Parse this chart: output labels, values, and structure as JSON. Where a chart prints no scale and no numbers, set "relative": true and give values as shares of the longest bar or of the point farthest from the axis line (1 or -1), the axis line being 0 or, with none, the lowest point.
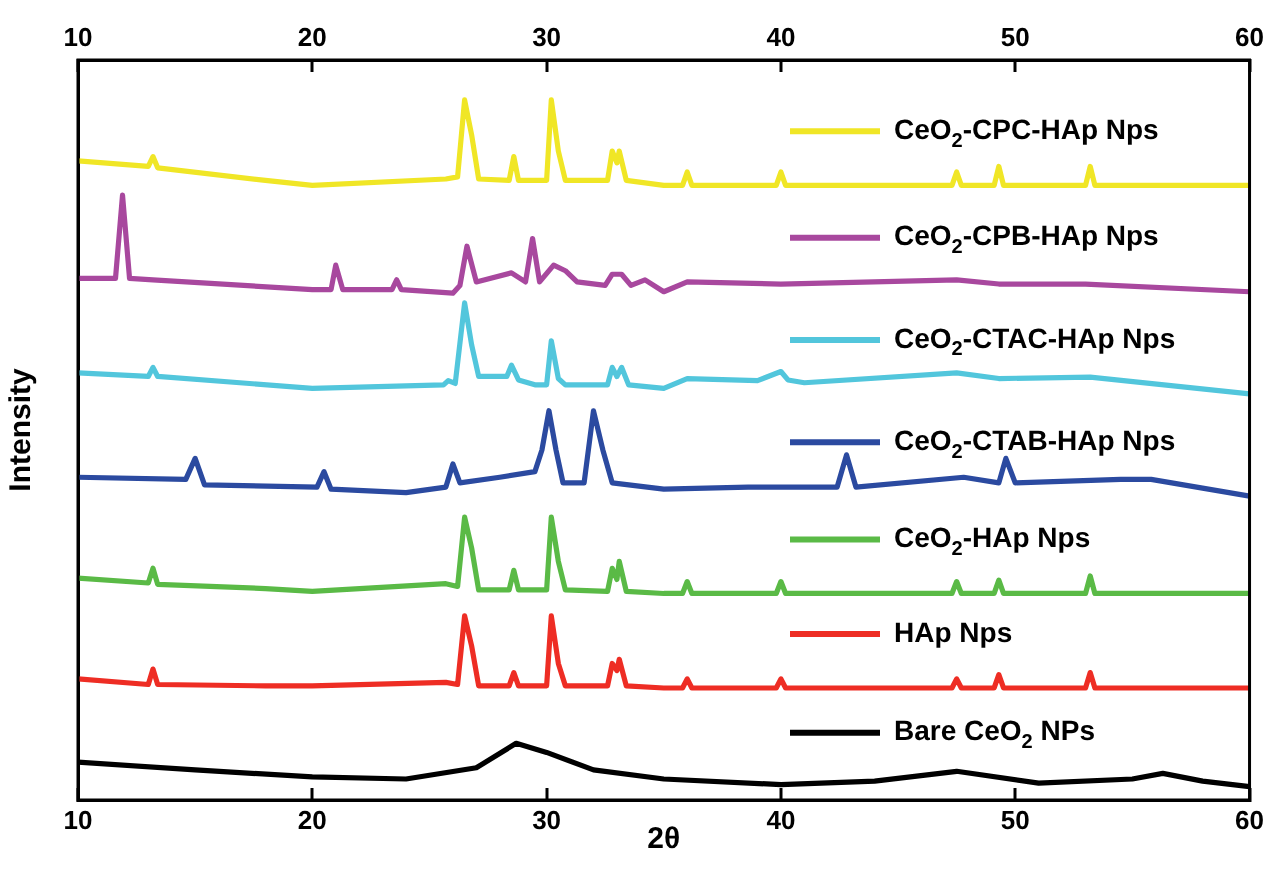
{
  "chart_data": {
    "type": "line",
    "xlabel": "2θ",
    "ylabel": "Intensity",
    "relative": true,
    "xlim": [
      10,
      60
    ],
    "xticks": [
      10,
      20,
      30,
      40,
      50,
      60
    ],
    "x2lim": [
      10,
      60
    ],
    "x2ticks": [
      10,
      20,
      30,
      40,
      50,
      60
    ],
    "legend": "top right",
    "grid": false,
    "marker": "none",
    "line_style": "solid",
    "series": [
      {
        "name": "CeO$_{2}$-CPC-HAp Nps",
        "color": "#f0e626",
        "x": [
          10,
          13,
          13.2,
          13.4,
          18,
          20,
          25.7,
          26.2,
          26.5,
          26.8,
          27.1,
          28.4,
          28.6,
          28.8,
          30,
          30.2,
          30.5,
          30.8,
          32.6,
          32.8,
          33,
          33.1,
          33.4,
          35,
          35.8,
          36,
          36.2,
          39.8,
          40,
          40.2,
          47.3,
          47.5,
          47.7,
          49.1,
          49.3,
          49.5,
          53,
          53.2,
          53.4,
          60
        ],
        "values": [
          0.913,
          0.905,
          0.919,
          0.903,
          0.885,
          0.878,
          0.887,
          0.89,
          1.0,
          0.95,
          0.887,
          0.885,
          0.919,
          0.885,
          0.885,
          1.0,
          0.927,
          0.885,
          0.885,
          0.927,
          0.91,
          0.927,
          0.885,
          0.878,
          0.878,
          0.897,
          0.878,
          0.878,
          0.897,
          0.878,
          0.878,
          0.897,
          0.878,
          0.878,
          0.905,
          0.878,
          0.878,
          0.905,
          0.878,
          0.878
        ]
      },
      {
        "name": "CeO$_{2}$-CPB-HAp Nps",
        "color": "#a8489e",
        "x": [
          10,
          11.6,
          11.9,
          12.2,
          13.2,
          20,
          20.8,
          21,
          21.3,
          23.4,
          23.6,
          23.8,
          26,
          26.3,
          26.6,
          27,
          28.5,
          29.1,
          29.4,
          29.7,
          30.3,
          30.8,
          31.3,
          32.5,
          32.8,
          33.2,
          33.6,
          34.2,
          35,
          36,
          40,
          47.5,
          49.3,
          53,
          60
        ],
        "values": [
          0.745,
          0.745,
          0.864,
          0.745,
          0.743,
          0.729,
          0.729,
          0.764,
          0.729,
          0.729,
          0.743,
          0.729,
          0.724,
          0.735,
          0.791,
          0.74,
          0.753,
          0.74,
          0.802,
          0.74,
          0.764,
          0.756,
          0.74,
          0.735,
          0.751,
          0.751,
          0.735,
          0.743,
          0.726,
          0.74,
          0.737,
          0.743,
          0.737,
          0.737,
          0.726
        ]
      },
      {
        "name": "CeO$_{2}$-CTAC-HAp Nps",
        "color": "#52c6dc",
        "x": [
          10,
          13,
          13.2,
          13.4,
          20,
          25.6,
          25.8,
          26.1,
          26.5,
          26.8,
          27.1,
          28.3,
          28.5,
          28.8,
          29.5,
          30,
          30.2,
          30.5,
          30.8,
          32.6,
          32.8,
          33,
          33.2,
          33.5,
          35,
          36,
          39,
          40,
          40.3,
          41,
          47.5,
          49.3,
          53.2,
          60
        ],
        "values": [
          0.61,
          0.605,
          0.618,
          0.605,
          0.588,
          0.593,
          0.599,
          0.595,
          0.71,
          0.65,
          0.605,
          0.605,
          0.621,
          0.6,
          0.593,
          0.593,
          0.656,
          0.602,
          0.593,
          0.593,
          0.618,
          0.605,
          0.618,
          0.593,
          0.588,
          0.602,
          0.599,
          0.612,
          0.6,
          0.596,
          0.61,
          0.602,
          0.604,
          0.58
        ]
      },
      {
        "name": "CeO$_{2}$-CTAB-HAp Nps",
        "color": "#2b4aa0",
        "x": [
          10,
          14.6,
          15,
          15.4,
          20.2,
          20.5,
          20.8,
          24,
          25.7,
          26,
          26.3,
          28,
          29.5,
          29.8,
          30.1,
          30.4,
          30.7,
          31.6,
          32,
          32.4,
          32.8,
          35,
          38.6,
          42.4,
          42.8,
          43.2,
          47.8,
          49.3,
          49.6,
          50,
          54.5,
          55.8,
          60
        ],
        "values": [
          0.461,
          0.458,
          0.488,
          0.45,
          0.447,
          0.469,
          0.444,
          0.439,
          0.447,
          0.48,
          0.453,
          0.461,
          0.469,
          0.5,
          0.556,
          0.5,
          0.453,
          0.453,
          0.556,
          0.5,
          0.453,
          0.444,
          0.447,
          0.447,
          0.493,
          0.447,
          0.461,
          0.453,
          0.488,
          0.453,
          0.458,
          0.458,
          0.434
        ]
      },
      {
        "name": "CeO$_{2}$-HAp Nps",
        "color": "#5aba46",
        "x": [
          10,
          13,
          13.2,
          13.4,
          18,
          20,
          25.7,
          26.2,
          26.5,
          26.8,
          27.1,
          28.4,
          28.6,
          28.8,
          30,
          30.2,
          30.5,
          30.8,
          32.6,
          32.8,
          33,
          33.1,
          33.4,
          35,
          35.8,
          36,
          36.2,
          39.8,
          40,
          40.2,
          47.3,
          47.5,
          47.7,
          49.1,
          49.3,
          49.5,
          53,
          53.2,
          53.4,
          60
        ],
        "values": [
          0.317,
          0.31,
          0.331,
          0.308,
          0.302,
          0.298,
          0.309,
          0.305,
          0.404,
          0.36,
          0.3,
          0.3,
          0.328,
          0.3,
          0.3,
          0.404,
          0.341,
          0.3,
          0.298,
          0.331,
          0.315,
          0.341,
          0.298,
          0.295,
          0.295,
          0.312,
          0.295,
          0.295,
          0.312,
          0.295,
          0.295,
          0.312,
          0.295,
          0.295,
          0.314,
          0.295,
          0.295,
          0.32,
          0.295,
          0.295
        ]
      },
      {
        "name": "HAp Nps",
        "color": "#ee2d24",
        "x": [
          10,
          13,
          13.2,
          13.4,
          18,
          20,
          25.7,
          26.2,
          26.5,
          26.8,
          27.1,
          28.4,
          28.6,
          28.8,
          30,
          30.2,
          30.5,
          30.8,
          32.6,
          32.8,
          33,
          33.1,
          33.4,
          35,
          35.8,
          36,
          36.2,
          39.8,
          40,
          40.2,
          47.3,
          47.5,
          47.7,
          49.1,
          49.3,
          49.5,
          53,
          53.2,
          53.4,
          60
        ],
        "values": [
          0.173,
          0.165,
          0.187,
          0.165,
          0.163,
          0.163,
          0.168,
          0.165,
          0.263,
          0.22,
          0.163,
          0.163,
          0.182,
          0.163,
          0.163,
          0.263,
          0.195,
          0.163,
          0.163,
          0.195,
          0.185,
          0.201,
          0.163,
          0.16,
          0.16,
          0.173,
          0.16,
          0.16,
          0.173,
          0.16,
          0.16,
          0.173,
          0.16,
          0.16,
          0.179,
          0.16,
          0.16,
          0.182,
          0.16,
          0.16
        ]
      },
      {
        "name": "Bare CeO$_{2}$ NPs",
        "color": "#000000",
        "x": [
          10,
          15,
          20,
          24,
          27,
          28.7,
          30,
          32,
          35,
          40,
          44,
          47.5,
          51,
          55,
          56.3,
          58,
          60
        ],
        "values": [
          0.054,
          0.043,
          0.033,
          0.03,
          0.046,
          0.081,
          0.068,
          0.043,
          0.03,
          0.022,
          0.027,
          0.041,
          0.024,
          0.03,
          0.038,
          0.027,
          0.019
        ]
      }
    ]
  }
}
